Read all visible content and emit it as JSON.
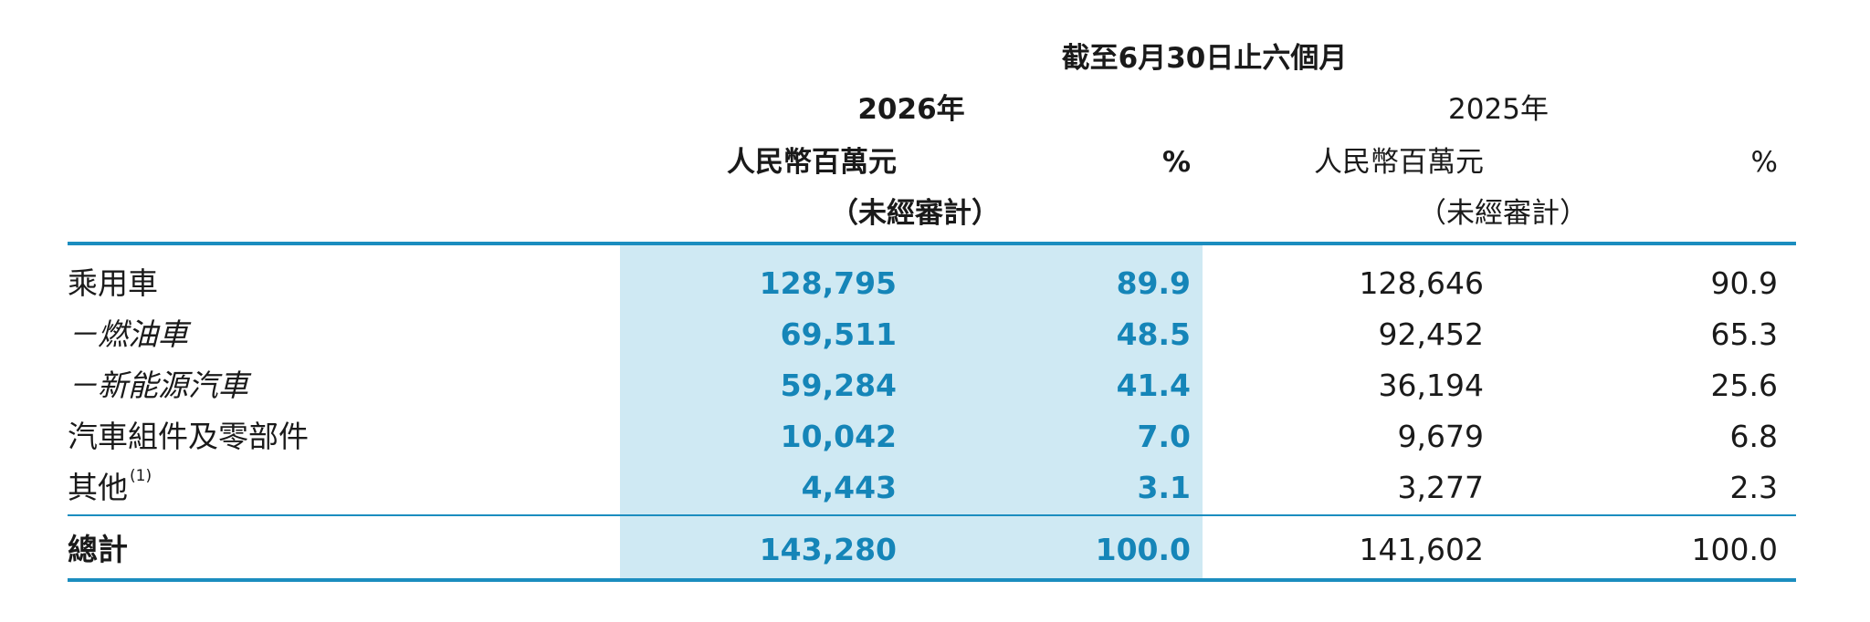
{
  "header": {
    "period": "截至6月30日止六個月",
    "year_current": "2026年",
    "year_prior": "2025年",
    "currency_current": "人民幣百萬元",
    "currency_prior": "人民幣百萬元",
    "pct_current": "%",
    "pct_prior": "%",
    "audit_current": "（未經審計）",
    "audit_prior": "（未經審計）"
  },
  "rows": [
    {
      "label": "乘用車",
      "cur_amount": "128,795",
      "cur_pct": "89.9",
      "prior_amount": "128,646",
      "prior_pct": "90.9"
    },
    {
      "label": "－燃油車",
      "cur_amount": "69,511",
      "cur_pct": "48.5",
      "prior_amount": "92,452",
      "prior_pct": "65.3"
    },
    {
      "label": "－新能源汽車",
      "cur_amount": "59,284",
      "cur_pct": "41.4",
      "prior_amount": "36,194",
      "prior_pct": "25.6"
    },
    {
      "label": "汽車組件及零部件",
      "cur_amount": "10,042",
      "cur_pct": "7.0",
      "prior_amount": "9,679",
      "prior_pct": "6.8"
    },
    {
      "label": "其他",
      "note": "(1)",
      "cur_amount": "4,443",
      "cur_pct": "3.1",
      "prior_amount": "3,277",
      "prior_pct": "2.3"
    }
  ],
  "total": {
    "label": "總計",
    "cur_amount": "143,280",
    "cur_pct": "100.0",
    "prior_amount": "141,602",
    "prior_pct": "100.0"
  },
  "colors": {
    "accent": "#1585b8",
    "rule": "#1b8dbf",
    "highlight": "#cfe9f3"
  }
}
